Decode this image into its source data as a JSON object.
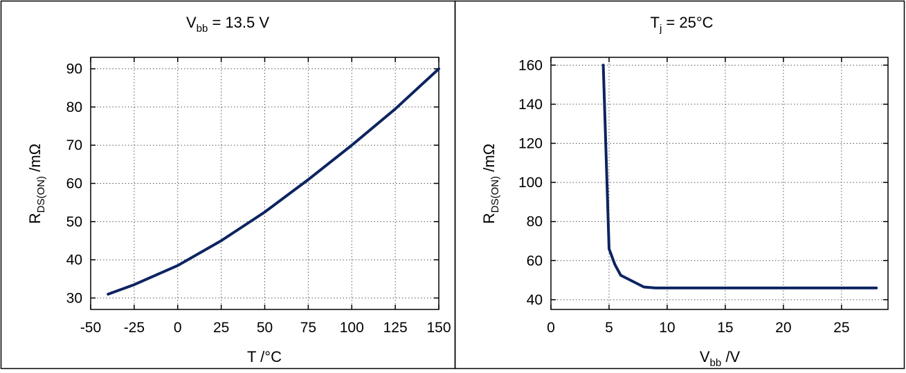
{
  "chart_data": [
    {
      "type": "line",
      "title_main": "V",
      "title_sub": "bb",
      "title_rest": " = 13.5 V",
      "xlabel": "T /°C",
      "ylabel_main": "R",
      "ylabel_sub": "DS(ON)",
      "ylabel_rest": " /mΩ",
      "xlim": [
        -50,
        150
      ],
      "ylim": [
        27,
        93
      ],
      "xticks": [
        -50,
        -25,
        0,
        25,
        50,
        75,
        100,
        125,
        150
      ],
      "xtick_labels": [
        "-50",
        "-25",
        "0",
        "25",
        "50",
        "75",
        "100",
        "125",
        "150"
      ],
      "yticks": [
        30,
        40,
        50,
        60,
        70,
        80,
        90
      ],
      "ytick_labels": [
        "30",
        "40",
        "50",
        "60",
        "70",
        "80",
        "90"
      ],
      "grid": true,
      "color": "#0d2461",
      "series": [
        {
          "x": [
            -40,
            -25,
            0,
            25,
            50,
            75,
            100,
            125,
            150
          ],
          "y": [
            31,
            33.5,
            38.5,
            45,
            52.5,
            61,
            70,
            79.5,
            90
          ]
        }
      ]
    },
    {
      "type": "line",
      "title_main": "T",
      "title_sub": "j",
      "title_rest": " = 25°C",
      "xlabel_main": "V",
      "xlabel_sub": "bb",
      "xlabel_rest": " /V",
      "ylabel_main": "R",
      "ylabel_sub": "DS(ON)",
      "ylabel_rest": " /mΩ",
      "xlim": [
        0,
        29
      ],
      "ylim": [
        35,
        164
      ],
      "xticks": [
        0,
        5,
        10,
        15,
        20,
        25
      ],
      "xtick_labels": [
        "0",
        "5",
        "10",
        "15",
        "20",
        "25"
      ],
      "yticks": [
        40,
        60,
        80,
        100,
        120,
        140,
        160
      ],
      "ytick_labels": [
        "40",
        "60",
        "80",
        "100",
        "120",
        "140",
        "160"
      ],
      "grid": true,
      "color": "#0d2461",
      "series": [
        {
          "x": [
            4.5,
            5.0,
            5.5,
            6.0,
            7.0,
            8.0,
            9.0,
            10,
            28
          ],
          "y": [
            160,
            66,
            58,
            52.5,
            49.5,
            46.5,
            46,
            46,
            46
          ]
        }
      ]
    }
  ]
}
